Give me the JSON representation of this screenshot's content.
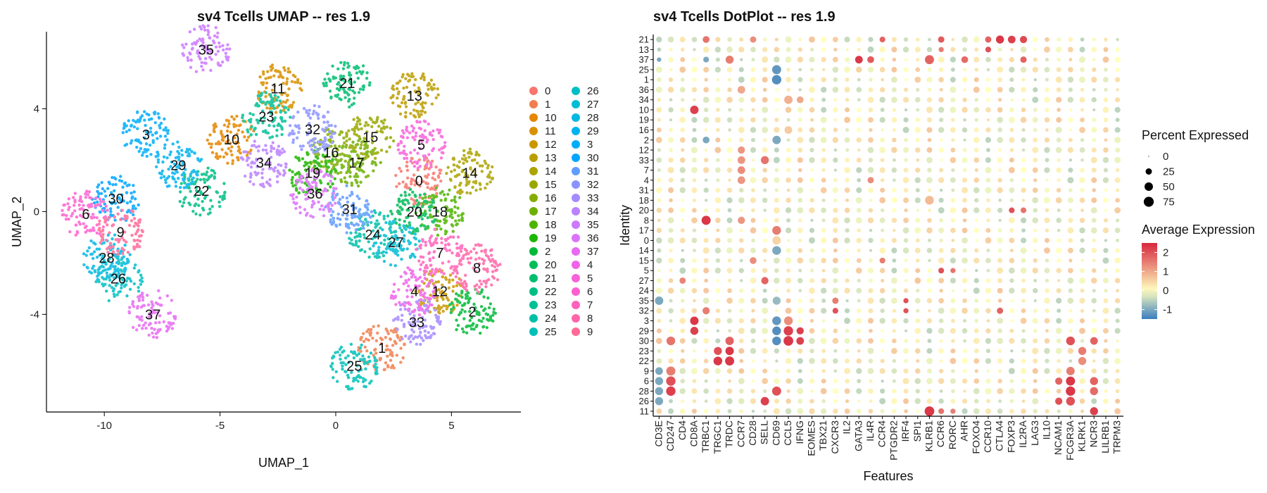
{
  "chart_data": [
    {
      "type": "scatter",
      "title": "sv4 Tcells UMAP -- res 1.9",
      "xlabel": "UMAP_1",
      "ylabel": "UMAP_2",
      "xlim": [
        -12.5,
        8.0
      ],
      "ylim": [
        -7.8,
        7.0
      ],
      "xticks": [
        -10,
        -5,
        0,
        5
      ],
      "yticks": [
        -4,
        0,
        4
      ],
      "legend_order": [
        "0",
        "1",
        "10",
        "11",
        "12",
        "13",
        "14",
        "15",
        "16",
        "17",
        "18",
        "19",
        "2",
        "20",
        "21",
        "22",
        "23",
        "24",
        "25",
        "26",
        "27",
        "28",
        "29",
        "3",
        "30",
        "31",
        "32",
        "33",
        "34",
        "35",
        "36",
        "37",
        "4",
        "5",
        "6",
        "7",
        "8",
        "9"
      ],
      "clusters": [
        {
          "name": "0",
          "color": "#F8766D",
          "x": 3.6,
          "y": 1.2
        },
        {
          "name": "1",
          "color": "#F07F4F",
          "x": 2.0,
          "y": -5.3
        },
        {
          "name": "10",
          "color": "#E58700",
          "x": -4.5,
          "y": 2.8
        },
        {
          "name": "11",
          "color": "#D89000",
          "x": -2.5,
          "y": 4.8
        },
        {
          "name": "12",
          "color": "#C99800",
          "x": 4.5,
          "y": -3.1
        },
        {
          "name": "13",
          "color": "#BB9D00",
          "x": 3.4,
          "y": 4.5
        },
        {
          "name": "14",
          "color": "#ABA300",
          "x": 5.8,
          "y": 1.5
        },
        {
          "name": "15",
          "color": "#99A800",
          "x": 1.5,
          "y": 2.9
        },
        {
          "name": "16",
          "color": "#85AD00",
          "x": -0.2,
          "y": 2.3
        },
        {
          "name": "17",
          "color": "#6DB000",
          "x": 0.9,
          "y": 1.9
        },
        {
          "name": "18",
          "color": "#4FB400",
          "x": 4.5,
          "y": 0.0
        },
        {
          "name": "19",
          "color": "#1CB600",
          "x": -1.0,
          "y": 1.5
        },
        {
          "name": "2",
          "color": "#00BA38",
          "x": 5.9,
          "y": -3.9
        },
        {
          "name": "20",
          "color": "#00BC59",
          "x": 3.4,
          "y": 0.0
        },
        {
          "name": "21",
          "color": "#00BE70",
          "x": 0.5,
          "y": 5.0
        },
        {
          "name": "22",
          "color": "#00BF84",
          "x": -5.8,
          "y": 0.8
        },
        {
          "name": "23",
          "color": "#00C097",
          "x": -3.0,
          "y": 3.7
        },
        {
          "name": "24",
          "color": "#00C0A8",
          "x": 1.6,
          "y": -0.9
        },
        {
          "name": "25",
          "color": "#00C0B8",
          "x": 0.8,
          "y": -6.0
        },
        {
          "name": "26",
          "color": "#00BFC4",
          "x": -9.4,
          "y": -2.6
        },
        {
          "name": "27",
          "color": "#00BDD4",
          "x": 2.6,
          "y": -1.2
        },
        {
          "name": "28",
          "color": "#00B8E3",
          "x": -9.9,
          "y": -1.8
        },
        {
          "name": "29",
          "color": "#00B3F0",
          "x": -6.8,
          "y": 1.8
        },
        {
          "name": "3",
          "color": "#00ADFA",
          "x": -8.2,
          "y": 3.0
        },
        {
          "name": "30",
          "color": "#00A5FF",
          "x": -9.5,
          "y": 0.5
        },
        {
          "name": "31",
          "color": "#619CFF",
          "x": 0.6,
          "y": 0.1
        },
        {
          "name": "32",
          "color": "#8B93FF",
          "x": -1.0,
          "y": 3.2
        },
        {
          "name": "33",
          "color": "#A58AFF",
          "x": 3.5,
          "y": -4.3
        },
        {
          "name": "34",
          "color": "#BB81FF",
          "x": -3.1,
          "y": 1.9
        },
        {
          "name": "35",
          "color": "#CC78FF",
          "x": -5.6,
          "y": 6.3
        },
        {
          "name": "36",
          "color": "#DB72FB",
          "x": -0.9,
          "y": 0.7
        },
        {
          "name": "37",
          "color": "#E76BF3",
          "x": -7.9,
          "y": -4.0
        },
        {
          "name": "4",
          "color": "#F063E8",
          "x": 3.4,
          "y": -3.1
        },
        {
          "name": "5",
          "color": "#F862DA",
          "x": 3.7,
          "y": 2.6
        },
        {
          "name": "6",
          "color": "#FD61D1",
          "x": -10.8,
          "y": -0.1
        },
        {
          "name": "7",
          "color": "#FF62BC",
          "x": 4.5,
          "y": -1.6
        },
        {
          "name": "8",
          "color": "#FF66A8",
          "x": 6.1,
          "y": -2.2
        },
        {
          "name": "9",
          "color": "#FF6A98",
          "x": -9.3,
          "y": -0.8
        }
      ]
    },
    {
      "type": "dotplot",
      "title": "sv4 Tcells DotPlot -- res 1.9",
      "xlabel": "Features",
      "ylabel": "Identity",
      "identities": [
        "21",
        "13",
        "37",
        "25",
        "1",
        "36",
        "34",
        "10",
        "19",
        "16",
        "2",
        "12",
        "33",
        "7",
        "4",
        "31",
        "18",
        "20",
        "8",
        "17",
        "0",
        "14",
        "15",
        "5",
        "27",
        "24",
        "35",
        "32",
        "3",
        "29",
        "30",
        "23",
        "22",
        "9",
        "6",
        "28",
        "26",
        "11"
      ],
      "features": [
        "CD3E",
        "CD247",
        "CD4",
        "CD8A",
        "TRBC1",
        "TRGC1",
        "TRDC",
        "CCR7",
        "CD28",
        "SELL",
        "CD69",
        "CCL5",
        "IFNG",
        "EOMES",
        "TBX21",
        "CXCR3",
        "IL2",
        "GATA3",
        "IL4R",
        "CCR4",
        "PTGDR2",
        "IRF4",
        "SPI1",
        "KLRB1",
        "CCR6",
        "RORC",
        "AHR",
        "FOXO4",
        "CCR10",
        "CTLA4",
        "FOXP3",
        "IL2RA",
        "LAG3",
        "IL10",
        "NCAM1",
        "FCGR3A",
        "KLRK1",
        "NCR3",
        "LILRB1",
        "TRPM3"
      ],
      "legend_size": {
        "title": "Percent Expressed",
        "values": [
          0,
          25,
          50,
          75
        ]
      },
      "legend_color": {
        "title": "Average Expression",
        "range": [
          -1.5,
          2.5
        ],
        "ticks": [
          2,
          1,
          0,
          -1
        ],
        "low_color": "#3A7DBF",
        "mid_color": "#FFFFBF",
        "high_color": "#D7263D"
      },
      "highlights": [
        {
          "identity": "21",
          "feature": "CTLA4",
          "pct": 45,
          "avg": 2.3
        },
        {
          "identity": "21",
          "feature": "FOXP3",
          "pct": 40,
          "avg": 2.2
        },
        {
          "identity": "21",
          "feature": "IL2RA",
          "pct": 35,
          "avg": 2.1
        },
        {
          "identity": "21",
          "feature": "TRBC1",
          "pct": 30,
          "avg": 1.6
        },
        {
          "identity": "21",
          "feature": "CCR10",
          "pct": 25,
          "avg": 1.8
        },
        {
          "identity": "21",
          "feature": "CCR4",
          "pct": 20,
          "avg": 1.8
        },
        {
          "identity": "21",
          "feature": "CCR6",
          "pct": 25,
          "avg": 1.9
        },
        {
          "identity": "21",
          "feature": "CD28",
          "pct": 25,
          "avg": 1.3
        },
        {
          "identity": "13",
          "feature": "CCR10",
          "pct": 20,
          "avg": 2.0
        },
        {
          "identity": "13",
          "feature": "CCR6",
          "pct": 15,
          "avg": 1.5
        },
        {
          "identity": "37",
          "feature": "GATA3",
          "pct": 40,
          "avg": 2.3
        },
        {
          "identity": "37",
          "feature": "KLRB1",
          "pct": 60,
          "avg": 1.8
        },
        {
          "identity": "37",
          "feature": "IL4R",
          "pct": 30,
          "avg": 1.9
        },
        {
          "identity": "37",
          "feature": "AHR",
          "pct": 30,
          "avg": 1.7
        },
        {
          "identity": "37",
          "feature": "IL2RA",
          "pct": 25,
          "avg": 1.8
        },
        {
          "identity": "37",
          "feature": "TRDC",
          "pct": 45,
          "avg": 1.5
        },
        {
          "identity": "37",
          "feature": "TRBC1",
          "pct": 20,
          "avg": -1.0
        },
        {
          "identity": "37",
          "feature": "CD3E",
          "pct": 10,
          "avg": -1.0
        },
        {
          "identity": "25",
          "feature": "CD69",
          "pct": 60,
          "avg": -1.2
        },
        {
          "identity": "1",
          "feature": "CD69",
          "pct": 65,
          "avg": -1.3
        },
        {
          "identity": "10",
          "feature": "CD8A",
          "pct": 50,
          "avg": 2.2
        },
        {
          "identity": "34",
          "feature": "CCL5",
          "pct": 50,
          "avg": 0.9
        },
        {
          "identity": "34",
          "feature": "IFNG",
          "pct": 30,
          "avg": 1.0
        },
        {
          "identity": "36",
          "feature": "CCR7",
          "pct": 40,
          "avg": 1.0
        },
        {
          "identity": "16",
          "feature": "CCL5",
          "pct": 40,
          "avg": 0.6
        },
        {
          "identity": "2",
          "feature": "CD69",
          "pct": 50,
          "avg": -1.0
        },
        {
          "identity": "2",
          "feature": "TRBC1",
          "pct": 30,
          "avg": -1.0
        },
        {
          "identity": "12",
          "feature": "CCR7",
          "pct": 35,
          "avg": 1.2
        },
        {
          "identity": "33",
          "feature": "SELL",
          "pct": 45,
          "avg": 1.6
        },
        {
          "identity": "33",
          "feature": "CCR7",
          "pct": 40,
          "avg": 1.2
        },
        {
          "identity": "7",
          "feature": "CCR7",
          "pct": 40,
          "avg": 1.3
        },
        {
          "identity": "4",
          "feature": "CCR7",
          "pct": 40,
          "avg": 1.2
        },
        {
          "identity": "4",
          "feature": "IL4R",
          "pct": 25,
          "avg": 1.3
        },
        {
          "identity": "18",
          "feature": "KLRB1",
          "pct": 55,
          "avg": 0.8
        },
        {
          "identity": "20",
          "feature": "FOXP3",
          "pct": 20,
          "avg": 2.0
        },
        {
          "identity": "20",
          "feature": "IL2RA",
          "pct": 20,
          "avg": 1.6
        },
        {
          "identity": "8",
          "feature": "TRBC1",
          "pct": 60,
          "avg": 2.3
        },
        {
          "identity": "8",
          "feature": "CCR7",
          "pct": 35,
          "avg": 1.2
        },
        {
          "identity": "17",
          "feature": "CD69",
          "pct": 55,
          "avg": 1.5
        },
        {
          "identity": "0",
          "feature": "CD69",
          "pct": 50,
          "avg": 0.5
        },
        {
          "identity": "14",
          "feature": "CD69",
          "pct": 55,
          "avg": -1.0
        },
        {
          "identity": "15",
          "feature": "CD28",
          "pct": 30,
          "avg": 1.3
        },
        {
          "identity": "15",
          "feature": "CCR4",
          "pct": 20,
          "avg": 1.5
        },
        {
          "identity": "5",
          "feature": "CCR6",
          "pct": 20,
          "avg": 2.0
        },
        {
          "identity": "5",
          "feature": "RORC",
          "pct": 15,
          "avg": 1.6
        },
        {
          "identity": "27",
          "feature": "SELL",
          "pct": 35,
          "avg": 1.8
        },
        {
          "identity": "27",
          "feature": "CD4",
          "pct": 25,
          "avg": 1.4
        },
        {
          "identity": "35",
          "feature": "CD3E",
          "pct": 50,
          "avg": -1.0
        },
        {
          "identity": "35",
          "feature": "CD69",
          "pct": 45,
          "avg": -0.8
        },
        {
          "identity": "35",
          "feature": "CXCR3",
          "pct": 25,
          "avg": 1.5
        },
        {
          "identity": "35",
          "feature": "IRF4",
          "pct": 15,
          "avg": 2.0
        },
        {
          "identity": "32",
          "feature": "TRBC1",
          "pct": 35,
          "avg": 1.5
        },
        {
          "identity": "32",
          "feature": "CTLA4",
          "pct": 25,
          "avg": 1.8
        },
        {
          "identity": "32",
          "feature": "CXCR3",
          "pct": 20,
          "avg": 2.0
        },
        {
          "identity": "32",
          "feature": "IRF4",
          "pct": 15,
          "avg": 2.0
        },
        {
          "identity": "3",
          "feature": "CD8A",
          "pct": 50,
          "avg": 2.3
        },
        {
          "identity": "3",
          "feature": "CD69",
          "pct": 55,
          "avg": -1.2
        },
        {
          "identity": "3",
          "feature": "CCL5",
          "pct": 55,
          "avg": 1.3
        },
        {
          "identity": "29",
          "feature": "CD8A",
          "pct": 45,
          "avg": 2.2
        },
        {
          "identity": "29",
          "feature": "CD69",
          "pct": 55,
          "avg": -1.3
        },
        {
          "identity": "29",
          "feature": "CCL5",
          "pct": 65,
          "avg": 2.2
        },
        {
          "identity": "29",
          "feature": "IFNG",
          "pct": 35,
          "avg": 2.2
        },
        {
          "identity": "30",
          "feature": "CD247",
          "pct": 55,
          "avg": 1.6
        },
        {
          "identity": "30",
          "feature": "TRDC",
          "pct": 50,
          "avg": 1.8
        },
        {
          "identity": "30",
          "feature": "CD69",
          "pct": 55,
          "avg": -1.3
        },
        {
          "identity": "30",
          "feature": "CCL5",
          "pct": 70,
          "avg": 2.3
        },
        {
          "identity": "30",
          "feature": "IFNG",
          "pct": 40,
          "avg": 2.2
        },
        {
          "identity": "30",
          "feature": "FCGR3A",
          "pct": 55,
          "avg": 2.0
        },
        {
          "identity": "30",
          "feature": "NCR3",
          "pct": 40,
          "avg": 1.8
        },
        {
          "identity": "23",
          "feature": "TRGC1",
          "pct": 45,
          "avg": 2.0
        },
        {
          "identity": "23",
          "feature": "TRDC",
          "pct": 50,
          "avg": 2.3
        },
        {
          "identity": "23",
          "feature": "KLRK1",
          "pct": 45,
          "avg": 1.5
        },
        {
          "identity": "22",
          "feature": "TRGC1",
          "pct": 55,
          "avg": 2.3
        },
        {
          "identity": "22",
          "feature": "TRDC",
          "pct": 60,
          "avg": 2.3
        },
        {
          "identity": "22",
          "feature": "KLRK1",
          "pct": 45,
          "avg": 1.3
        },
        {
          "identity": "9",
          "feature": "CD247",
          "pct": 60,
          "avg": 1.5
        },
        {
          "identity": "9",
          "feature": "CD3E",
          "pct": 40,
          "avg": -1.0
        },
        {
          "identity": "9",
          "feature": "FCGR3A",
          "pct": 50,
          "avg": 1.5
        },
        {
          "identity": "6",
          "feature": "CD247",
          "pct": 65,
          "avg": 2.0
        },
        {
          "identity": "6",
          "feature": "CD3E",
          "pct": 45,
          "avg": -1.0
        },
        {
          "identity": "6",
          "feature": "NCAM1",
          "pct": 35,
          "avg": 1.8
        },
        {
          "identity": "6",
          "feature": "FCGR3A",
          "pct": 60,
          "avg": 2.3
        },
        {
          "identity": "6",
          "feature": "NCR3",
          "pct": 45,
          "avg": 1.8
        },
        {
          "identity": "28",
          "feature": "CD247",
          "pct": 65,
          "avg": 2.2
        },
        {
          "identity": "28",
          "feature": "CD3E",
          "pct": 45,
          "avg": -1.0
        },
        {
          "identity": "28",
          "feature": "CD69",
          "pct": 60,
          "avg": 2.0
        },
        {
          "identity": "28",
          "feature": "FCGR3A",
          "pct": 65,
          "avg": 2.3
        },
        {
          "identity": "28",
          "feature": "NCR3",
          "pct": 45,
          "avg": 1.7
        },
        {
          "identity": "26",
          "feature": "SELL",
          "pct": 50,
          "avg": 2.2
        },
        {
          "identity": "26",
          "feature": "CD3E",
          "pct": 45,
          "avg": -1.0
        },
        {
          "identity": "26",
          "feature": "NCAM1",
          "pct": 35,
          "avg": 2.0
        },
        {
          "identity": "26",
          "feature": "FCGR3A",
          "pct": 55,
          "avg": 2.0
        },
        {
          "identity": "11",
          "feature": "KLRB1",
          "pct": 70,
          "avg": 2.3
        },
        {
          "identity": "11",
          "feature": "NCR3",
          "pct": 45,
          "avg": 2.2
        },
        {
          "identity": "11",
          "feature": "CCR6",
          "pct": 20,
          "avg": 1.6
        },
        {
          "identity": "11",
          "feature": "RORC",
          "pct": 15,
          "avg": 1.5
        }
      ]
    }
  ]
}
